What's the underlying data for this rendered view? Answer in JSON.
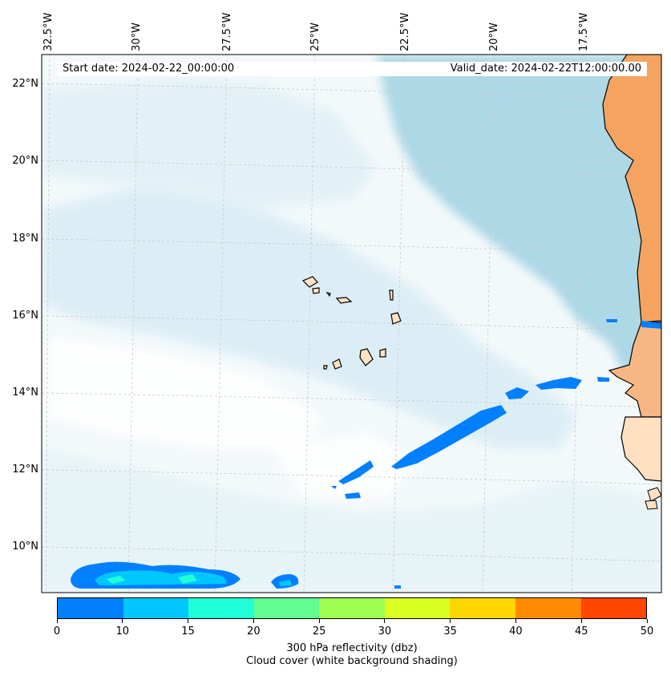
{
  "header": {
    "start_date": "Start date: 2024-02-22_00:00:00",
    "valid_date": "Valid_date: 2024-02-22T12:00:00.00"
  },
  "map": {
    "lon_labels": [
      "32.5°W",
      "30°W",
      "27.5°W",
      "25°W",
      "22.5°W",
      "20°W",
      "17.5°W"
    ],
    "lat_labels": [
      "22°N",
      "20°N",
      "18°N",
      "16°N",
      "14°N",
      "12°N",
      "10°N"
    ],
    "colors": {
      "ocean_cloud_light": "#e8f4f8",
      "cloud_clear": "#ffffff",
      "clear_sky_blue": "#add8e6",
      "land_orange": "#f4a460",
      "land_pale": "#ffe4c4",
      "coastline": "#000000"
    }
  },
  "colorbar": {
    "ticks": [
      "0",
      "10",
      "15",
      "20",
      "25",
      "30",
      "35",
      "40",
      "45",
      "50"
    ],
    "colors": [
      "#0080ff",
      "#00c8ff",
      "#20ffd8",
      "#60ff90",
      "#a0ff50",
      "#d8ff20",
      "#ffd700",
      "#ff8c00",
      "#ff4500"
    ],
    "label_line1": "300 hPa reflectivity (dbz)",
    "label_line2": "Cloud cover (white background shading)"
  }
}
